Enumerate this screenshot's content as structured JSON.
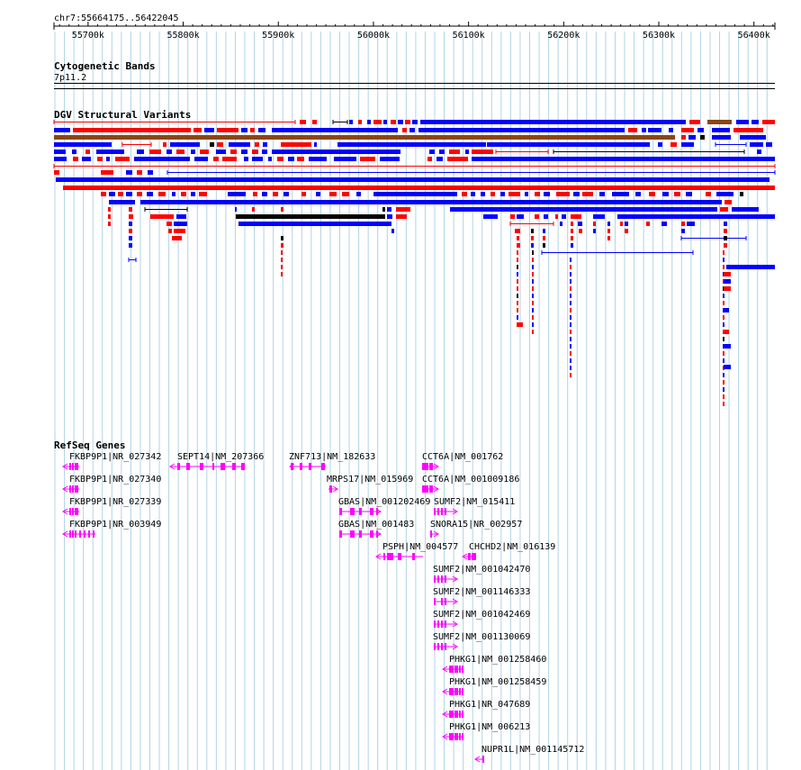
{
  "location": "chr7:55664175..56422045",
  "ruler": {
    "start": 55664175,
    "end": 56422045,
    "ticks": [
      "55700k",
      "55800k",
      "55900k",
      "56000k",
      "56100k",
      "56200k",
      "56300k",
      "56400k"
    ],
    "tick_values": [
      55700000,
      55800000,
      55900000,
      56000000,
      56100000,
      56200000,
      56300000,
      56400000
    ]
  },
  "tracks": {
    "cytobands": {
      "title": "Cytogenetic Bands",
      "band": "7p11.2"
    },
    "dgv": {
      "title": "DGV Structural Variants"
    },
    "refseq": {
      "title": "RefSeq Genes"
    }
  },
  "colors": {
    "grid": "#b0d4e6",
    "gain": "#0000ff",
    "loss": "#ff0000",
    "complex": "#8b4513",
    "other": "#000000",
    "gene": "#ff00ff"
  },
  "genes": [
    {
      "label": "FKBP9P1|NR_027342"
    },
    {
      "label": "FKBP9P1|NR_027340"
    },
    {
      "label": "FKBP9P1|NR_027339"
    },
    {
      "label": "FKBP9P1|NR_003949"
    },
    {
      "label": "SEPT14|NM_207366"
    },
    {
      "label": "ZNF713|NM_182633"
    },
    {
      "label": "MRPS17|NM_015969"
    },
    {
      "label": "GBAS|NM_001202469"
    },
    {
      "label": "GBAS|NM_001483"
    },
    {
      "label": "PSPH|NM_004577"
    },
    {
      "label": "CCT6A|NM_001762"
    },
    {
      "label": "CCT6A|NM_001009186"
    },
    {
      "label": "SUMF2|NM_015411"
    },
    {
      "label": "SNORA15|NR_002957"
    },
    {
      "label": "CHCHD2|NM_016139"
    },
    {
      "label": "SUMF2|NM_001042470"
    },
    {
      "label": "SUMF2|NM_001146333"
    },
    {
      "label": "SUMF2|NM_001042469"
    },
    {
      "label": "SUMF2|NM_001130069"
    },
    {
      "label": "PHKG1|NM_001258460"
    },
    {
      "label": "PHKG1|NM_001258459"
    },
    {
      "label": "PHKG1|NR_047689"
    },
    {
      "label": "PHKG1|NM_006213"
    },
    {
      "label": "NUPR1L|NM_001145712"
    }
  ]
}
